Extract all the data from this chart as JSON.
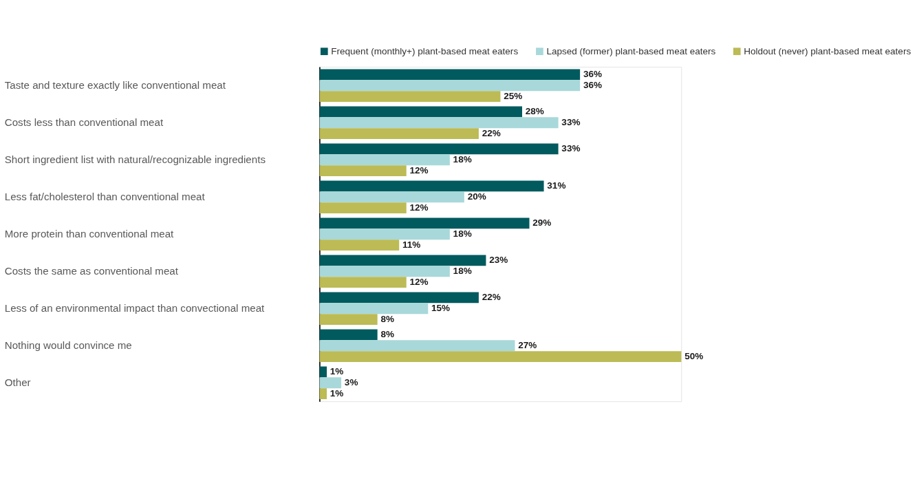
{
  "chart_data": {
    "type": "bar",
    "orientation": "horizontal",
    "legend": "top",
    "categories": [
      "Taste and texture exactly like conventional meat",
      "Costs less than conventional meat",
      "Short ingredient list with natural/recognizable ingredients",
      "Less fat/cholesterol than conventional meat",
      "More protein than conventional meat",
      "Costs the same as conventional meat",
      "Less of an environmental impact than convectional meat",
      "Nothing would convince me",
      "Other"
    ],
    "series": [
      {
        "name": "Frequent (monthly+) plant-based meat eaters",
        "color": "#005a5e",
        "values": [
          36,
          28,
          33,
          31,
          29,
          23,
          22,
          8,
          1
        ],
        "value_labels": [
          "36%",
          "28%",
          "33%",
          "31%",
          "29%",
          "23%",
          "22%",
          "8%",
          "1%"
        ]
      },
      {
        "name": "Lapsed (former) plant-based meat eaters",
        "color": "#a8d8da",
        "values": [
          36,
          33,
          18,
          20,
          18,
          18,
          15,
          27,
          3
        ],
        "value_labels": [
          "36%",
          "33%",
          "18%",
          "20%",
          "18%",
          "18%",
          "15%",
          "27%",
          "3%"
        ]
      },
      {
        "name": "Holdout (never) plant-based meat eaters",
        "color": "#bcbb55",
        "values": [
          25,
          22,
          12,
          12,
          11,
          12,
          8,
          50,
          1
        ],
        "value_labels": [
          "25%",
          "22%",
          "12%",
          "12%",
          "11%",
          "12%",
          "8%",
          "50%",
          "1%"
        ]
      }
    ]
  }
}
